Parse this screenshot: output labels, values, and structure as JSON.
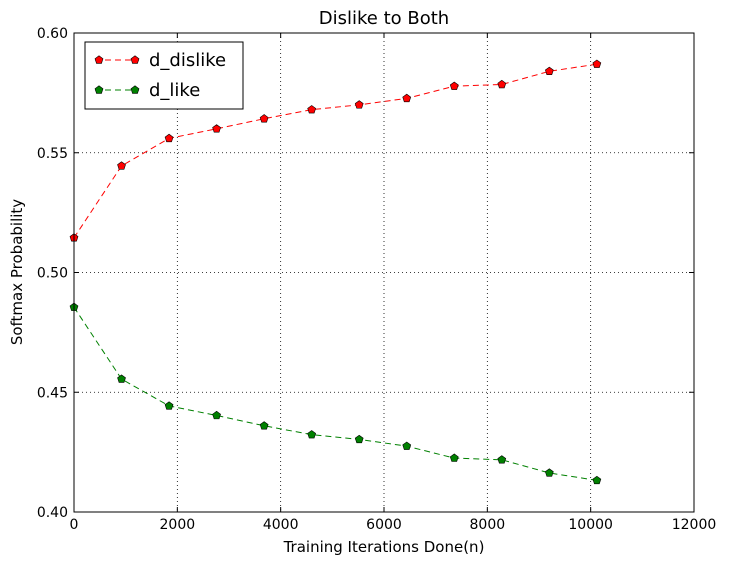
{
  "chart_data": {
    "type": "line",
    "title": "Dislike to Both",
    "xlabel": "Training Iterations Done(n)",
    "ylabel": "Softmax Probability",
    "xlim": [
      0,
      12000
    ],
    "ylim": [
      0.4,
      0.6
    ],
    "xticks": [
      0,
      2000,
      4000,
      6000,
      8000,
      10000,
      12000
    ],
    "xtick_labels": [
      "0",
      "2000",
      "4000",
      "6000",
      "8000",
      "10000",
      "12000"
    ],
    "yticks": [
      0.4,
      0.45,
      0.5,
      0.55,
      0.6
    ],
    "ytick_labels": [
      "0.40",
      "0.45",
      "0.50",
      "0.55",
      "0.60"
    ],
    "grid": true,
    "legend_position": "top-left",
    "x": [
      0,
      920,
      1840,
      2760,
      3680,
      4600,
      5520,
      6440,
      7360,
      8280,
      9200,
      10120
    ],
    "series": [
      {
        "name": "d_dislike",
        "color": "#ff0000",
        "marker": "pentagon",
        "linestyle": "dashed",
        "values": [
          0.5145,
          0.5445,
          0.556,
          0.56,
          0.5642,
          0.568,
          0.57,
          0.5727,
          0.5778,
          0.5785,
          0.584,
          0.587
        ]
      },
      {
        "name": "d_like",
        "color": "#008000",
        "marker": "pentagon",
        "linestyle": "dashed",
        "values": [
          0.4855,
          0.4555,
          0.4443,
          0.4403,
          0.436,
          0.4323,
          0.4303,
          0.4275,
          0.4225,
          0.4218,
          0.4163,
          0.4132
        ]
      }
    ]
  }
}
